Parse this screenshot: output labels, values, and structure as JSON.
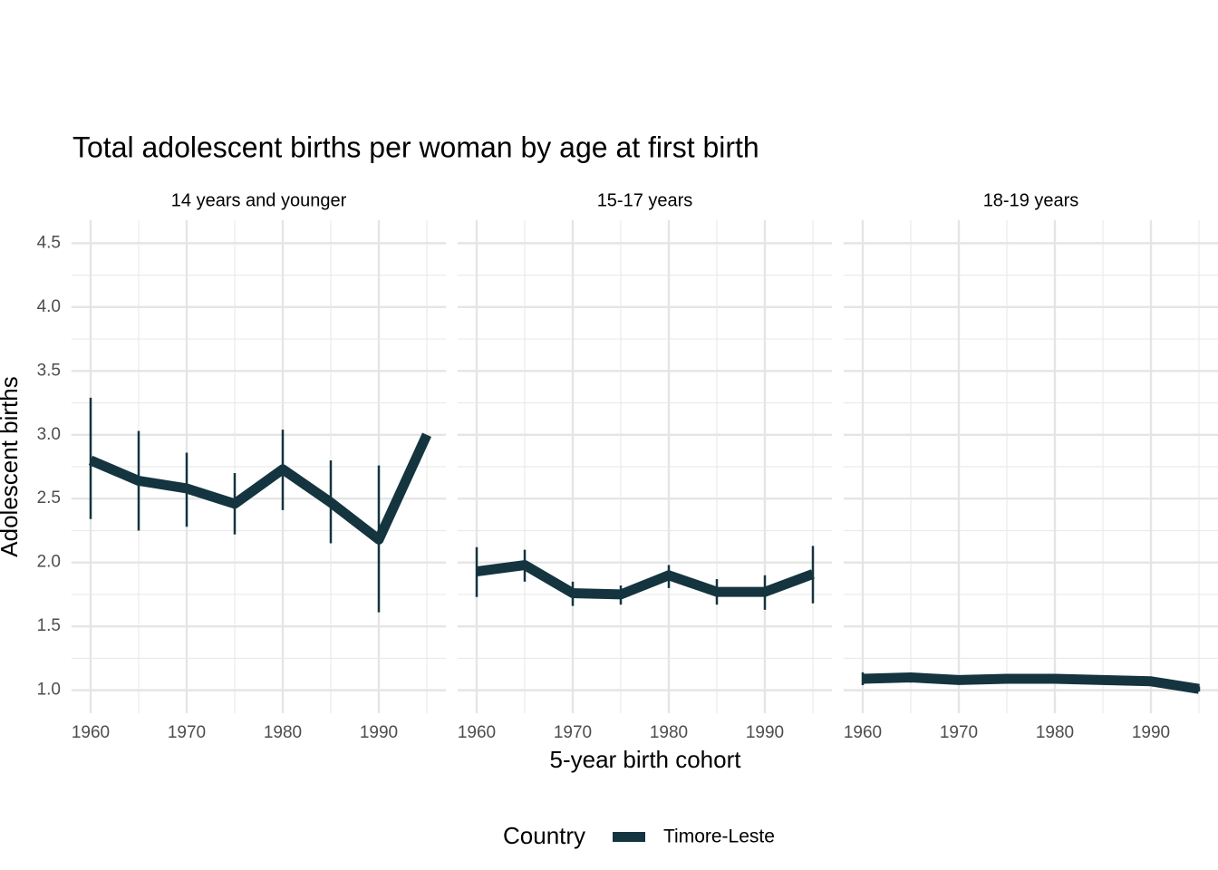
{
  "chart_data": {
    "type": "line",
    "title": "Total adolescent births per woman by age at first birth",
    "x_label": "5-year birth cohort",
    "y_label": "Adolescent births",
    "legend_title": "Country",
    "series_name": "Timore-Leste",
    "color": "#14343f",
    "x": [
      1960,
      1965,
      1970,
      1975,
      1980,
      1985,
      1990,
      1995
    ],
    "xlim": [
      1958,
      1997
    ],
    "xticks": [
      1960,
      1970,
      1980,
      1990
    ],
    "xminor": [
      1965,
      1975,
      1985,
      1995
    ],
    "ylim": [
      0.82,
      4.68
    ],
    "yticks": [
      {
        "value": 1,
        "label": "1.0"
      },
      1.5,
      {
        "value": 2,
        "label": "2.0"
      },
      2.5,
      {
        "value": 3,
        "label": "3.0"
      },
      3.5,
      {
        "value": 4,
        "label": "4.0"
      },
      4.5
    ],
    "yminor": [
      1.25,
      1.75,
      2.25,
      2.75,
      3.25,
      3.75,
      4.25
    ],
    "grid": true,
    "panels": [
      {
        "label": "14 years and younger",
        "values": [
          2.8,
          2.64,
          2.58,
          2.46,
          2.73,
          2.47,
          2.18,
          3.0
        ],
        "lower": [
          2.34,
          2.25,
          2.28,
          2.22,
          2.41,
          2.15,
          1.61,
          null
        ],
        "upper": [
          3.29,
          3.03,
          2.86,
          2.7,
          3.04,
          2.8,
          2.76,
          null
        ]
      },
      {
        "label": "15-17 years",
        "values": [
          1.93,
          1.98,
          1.76,
          1.75,
          1.9,
          1.77,
          1.77,
          1.91
        ],
        "lower": [
          1.73,
          1.85,
          1.66,
          1.67,
          1.8,
          1.67,
          1.63,
          1.68
        ],
        "upper": [
          2.12,
          2.1,
          1.85,
          1.82,
          1.98,
          1.87,
          1.9,
          2.13
        ]
      },
      {
        "label": "18-19 years",
        "values": [
          1.09,
          1.1,
          1.08,
          1.09,
          1.09,
          1.08,
          1.07,
          1.01
        ],
        "lower": [
          1.04,
          1.06,
          1.07,
          1.08,
          1.08,
          1.07,
          1.05,
          0.99
        ],
        "upper": [
          1.14,
          1.13,
          1.09,
          1.1,
          1.1,
          1.09,
          1.09,
          1.03
        ]
      }
    ]
  }
}
